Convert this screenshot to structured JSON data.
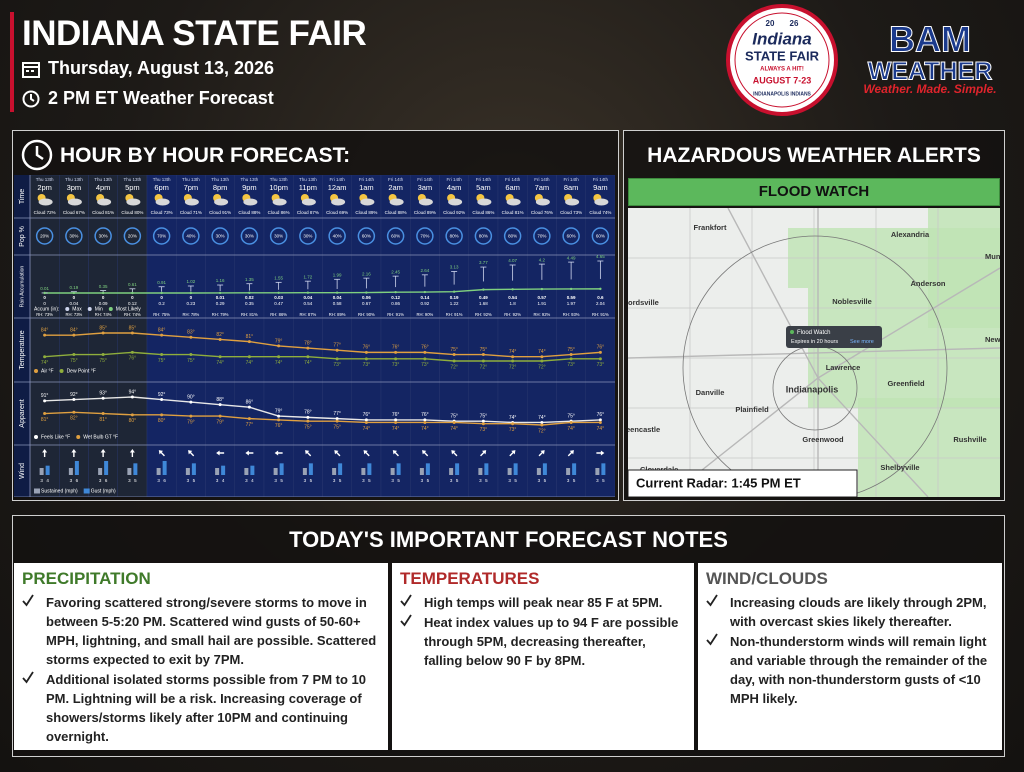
{
  "header": {
    "title": "INDIANA STATE FAIR",
    "date": "Thursday, August 13, 2026",
    "subtitle": "2 PM ET Weather Forecast"
  },
  "logos": {
    "fair_year_left": "20",
    "fair_year_right": "26",
    "fair_line1": "Indiana",
    "fair_line2": "STATE FAIR",
    "fair_tag": "ALWAYS A HIT!",
    "fair_dates": "AUGUST 7-23",
    "fair_presented": "INDIANAPOLIS INDIANS",
    "bam": "BAM",
    "bam2": "WEATHER",
    "bam_tag": "Weather. Made. Simple."
  },
  "hourly": {
    "title": "HOUR BY HOUR FORECAST:",
    "row_labels": [
      "Time",
      "Pop %",
      "Rain Accumulation",
      "Temperature",
      "Apparent",
      "Wind"
    ],
    "days": [
      "Thu 13th",
      "Thu 13th",
      "Thu 13th",
      "Thu 13th",
      "Thu 13th",
      "Thu 13th",
      "Thu 13th",
      "Thu 13th",
      "Thu 13th",
      "Thu 13th",
      "Fri 14th",
      "Fri 14th",
      "Fri 14th",
      "Fri 14th",
      "Fri 14th",
      "Fri 14th",
      "Fri 14th",
      "Fri 14th",
      "Fri 14th",
      "Fri 14th"
    ],
    "hours": [
      "2pm",
      "3pm",
      "4pm",
      "5pm",
      "6pm",
      "7pm",
      "8pm",
      "9pm",
      "10pm",
      "11pm",
      "12am",
      "1am",
      "2am",
      "3am",
      "4am",
      "5am",
      "6am",
      "7am",
      "8am",
      "9am"
    ],
    "cloud": [
      "Cloud 72%",
      "Cloud 67%",
      "Cloud 81%",
      "Cloud 80%",
      "Cloud 73%",
      "Cloud 71%",
      "Cloud 91%",
      "Cloud 88%",
      "Cloud 86%",
      "Cloud 87%",
      "Cloud 69%",
      "Cloud 89%",
      "Cloud 88%",
      "Cloud 89%",
      "Cloud 92%",
      "Cloud 86%",
      "Cloud 81%",
      "Cloud 76%",
      "Cloud 73%",
      "Cloud 74%"
    ],
    "pop": [
      "20%",
      "30%",
      "30%",
      "20%",
      "70%",
      "40%",
      "30%",
      "30%",
      "30%",
      "30%",
      "40%",
      "60%",
      "60%",
      "70%",
      "80%",
      "80%",
      "80%",
      "70%",
      "60%",
      "60%"
    ],
    "rain_max": [
      0.01,
      0.19,
      0.35,
      0.61,
      0.91,
      1.02,
      1.16,
      1.35,
      1.55,
      1.72,
      1.99,
      2.16,
      2.45,
      2.64,
      3.13,
      3.77,
      4.07,
      4.2,
      4.49,
      4.65
    ],
    "rain_likely": [
      0,
      0,
      0,
      0,
      0,
      0,
      0.01,
      0.02,
      0.03,
      0.04,
      0.04,
      0.06,
      0.12,
      0.14,
      0.19,
      0.49,
      0.54,
      0.57,
      0.59,
      0.6
    ],
    "rain_min": [
      0,
      0.04,
      0.09,
      0.12,
      0.2,
      0.23,
      0.29,
      0.35,
      0.47,
      0.54,
      0.58,
      0.67,
      0.86,
      0.92,
      1.22,
      1.68,
      1.8,
      1.91,
      1.97,
      2.04
    ],
    "accum_legend": [
      "Accum (in):",
      "Max",
      "Min",
      "Most Likely"
    ],
    "rh": [
      "RH: 73%",
      "RH: 73%",
      "RH: 74%",
      "RH: 74%",
      "RH: 75%",
      "RH: 78%",
      "RH: 79%",
      "RH: 81%",
      "RH: 86%",
      "RH: 87%",
      "RH: 89%",
      "RH: 90%",
      "RH: 91%",
      "RH: 90%",
      "RH: 91%",
      "RH: 92%",
      "RH: 92%",
      "RH: 92%",
      "RH: 93%",
      "RH: 91%"
    ],
    "temp": {
      "values": [
        84,
        84,
        85,
        85,
        84,
        83,
        82,
        81,
        79,
        78,
        77,
        76,
        76,
        76,
        75,
        75,
        74,
        74,
        75,
        76
      ],
      "value_labels": [
        "84°",
        "84°",
        "85°",
        "85°",
        "84°",
        "83°",
        "82°",
        "81°",
        "79°",
        "78°",
        "77°",
        "76°",
        "76°",
        "76°",
        "75°",
        "75°",
        "74°",
        "74°",
        "75°",
        "76°"
      ]
    },
    "dew": {
      "values": [
        74,
        75,
        75,
        76,
        75,
        75,
        74,
        74,
        74,
        74,
        73,
        73,
        73,
        73,
        72,
        72,
        72,
        72,
        73,
        73
      ],
      "value_labels": [
        "74°",
        "75°",
        "75°",
        "76°",
        "75°",
        "75°",
        "74°",
        "74°",
        "74°",
        "74°",
        "73°",
        "73°",
        "73°",
        "73°",
        "72°",
        "72°",
        "72°",
        "72°",
        "73°",
        "73°"
      ]
    },
    "temp_legend": [
      "Air °F",
      "Dew Point °F"
    ],
    "feels": {
      "values": [
        91,
        92,
        93,
        94,
        92,
        90,
        88,
        86,
        79,
        78,
        77,
        76,
        76,
        76,
        75,
        75,
        74,
        74,
        75,
        76
      ],
      "value_labels": [
        "91°",
        "92°",
        "93°",
        "94°",
        "92°",
        "90°",
        "88°",
        "86°",
        "79°",
        "78°",
        "77°",
        "76°",
        "76°",
        "76°",
        "75°",
        "75°",
        "74°",
        "74°",
        "75°",
        "76°"
      ]
    },
    "wetbulb": {
      "values": [
        81,
        82,
        81,
        80,
        80,
        79,
        79,
        77,
        76,
        75,
        75,
        74,
        74,
        74,
        74,
        73,
        73,
        72,
        74,
        74
      ],
      "value_labels": [
        "81°",
        "82°",
        "81°",
        "80°",
        "80°",
        "79°",
        "79°",
        "77°",
        "76°",
        "75°",
        "75°",
        "74°",
        "74°",
        "74°",
        "74°",
        "73°",
        "73°",
        "72°",
        "74°",
        "74°"
      ]
    },
    "apparent_legend": [
      "Feels Like °F",
      "Wet Bulb GT °F"
    ],
    "wind_dir": [
      0,
      0,
      0,
      0,
      315,
      315,
      270,
      270,
      270,
      315,
      315,
      315,
      315,
      315,
      315,
      45,
      45,
      45,
      45,
      90
    ],
    "sustained": [
      3,
      3,
      3,
      3,
      3,
      3,
      3,
      3,
      3,
      3,
      3,
      3,
      3,
      3,
      3,
      3,
      3,
      3,
      3,
      3
    ],
    "gust": [
      4,
      6,
      6,
      5,
      6,
      5,
      4,
      4,
      5,
      5,
      5,
      5,
      5,
      5,
      5,
      5,
      5,
      5,
      5,
      5
    ],
    "wind_legend": [
      "Sustained (mph)",
      "Gust (mph)"
    ]
  },
  "alerts": {
    "title": "HAZARDOUS WEATHER ALERTS",
    "watch": "FLOOD WATCH",
    "map_labels": [
      "Frankfort",
      "Alexandria",
      "Mun",
      "Anderson",
      "Noblesville",
      "ordsville",
      "New",
      "Lawrence",
      "Greenfield",
      "Indianapolis",
      "Danville",
      "Plainfield",
      "eencastle",
      "Greenwood",
      "Rushville",
      "Shelbyville",
      "Cloverdale"
    ],
    "popup": {
      "title": "Flood Watch",
      "expires": "Expires in 20 hours",
      "more": "See more"
    },
    "radar": "Current Radar: 1:45 PM ET"
  },
  "notes": {
    "title": "TODAY'S IMPORTANT FORECAST NOTES",
    "sections": [
      {
        "heading": "PRECIPITATION",
        "items": [
          "Favoring scattered strong/severe storms to move in between 5-5:20 PM. Scattered wind gusts of 50-60+ MPH, lightning, and small hail are possible. Scattered storms expected to exit by 7PM.",
          "Additional isolated storms possible from 7 PM to 10 PM. Lightning will be a risk. Increasing coverage of showers/storms likely after 10PM and continuing overnight."
        ]
      },
      {
        "heading": "TEMPERATURES",
        "items": [
          "High temps will peak near 85 F at 5PM.",
          "Heat index values up to 94 F are possible through 5PM, decreasing thereafter, falling below 90 F by 8PM."
        ]
      },
      {
        "heading": "WIND/CLOUDS",
        "items": [
          "Increasing clouds are likely through 2PM, with overcast skies likely thereafter.",
          "Non-thunderstorm winds will remain light and variable through the remainder of the day, with non-thunderstorm gusts of <10 MPH likely."
        ]
      }
    ]
  }
}
